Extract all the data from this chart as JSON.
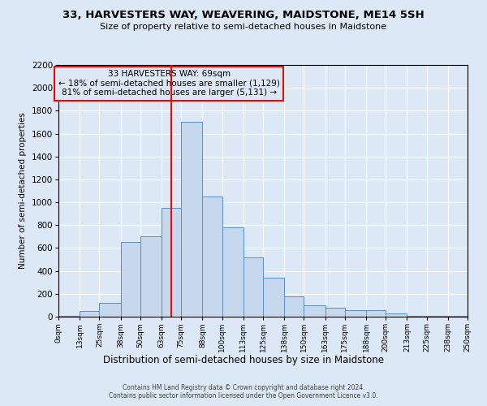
{
  "title": "33, HARVESTERS WAY, WEAVERING, MAIDSTONE, ME14 5SH",
  "subtitle": "Size of property relative to semi-detached houses in Maidstone",
  "xlabel": "Distribution of semi-detached houses by size in Maidstone",
  "ylabel": "Number of semi-detached properties",
  "footer_line1": "Contains HM Land Registry data © Crown copyright and database right 2024.",
  "footer_line2": "Contains public sector information licensed under the Open Government Licence v3.0.",
  "annotation_line1": "33 HARVESTERS WAY: 69sqm",
  "annotation_line2": "← 18% of semi-detached houses are smaller (1,129)",
  "annotation_line3": "81% of semi-detached houses are larger (5,131) →",
  "bar_color": "#c5d8ee",
  "bar_edge_color": "#5b8ec4",
  "red_line_x": 69,
  "bin_edges": [
    0,
    13,
    25,
    38,
    50,
    63,
    75,
    88,
    100,
    113,
    125,
    138,
    150,
    163,
    175,
    188,
    200,
    213,
    225,
    238,
    250
  ],
  "bin_labels": [
    "0sqm",
    "13sqm",
    "25sqm",
    "38sqm",
    "50sqm",
    "63sqm",
    "75sqm",
    "88sqm",
    "100sqm",
    "113sqm",
    "125sqm",
    "138sqm",
    "150sqm",
    "163sqm",
    "175sqm",
    "188sqm",
    "200sqm",
    "213sqm",
    "225sqm",
    "238sqm",
    "250sqm"
  ],
  "counts": [
    5,
    50,
    120,
    650,
    700,
    950,
    1700,
    1050,
    780,
    520,
    340,
    175,
    100,
    80,
    60,
    55,
    25,
    10,
    5,
    5
  ],
  "ylim": [
    0,
    2200
  ],
  "yticks": [
    0,
    200,
    400,
    600,
    800,
    1000,
    1200,
    1400,
    1600,
    1800,
    2000,
    2200
  ],
  "background_color": "#dce8f5",
  "grid_color": "#ffffff",
  "title_fontsize": 9.5,
  "subtitle_fontsize": 8,
  "ylabel_fontsize": 7.5,
  "xlabel_fontsize": 8.5,
  "ytick_fontsize": 7.5,
  "xtick_fontsize": 6.5,
  "footer_fontsize": 5.5,
  "annotation_fontsize": 7.5
}
